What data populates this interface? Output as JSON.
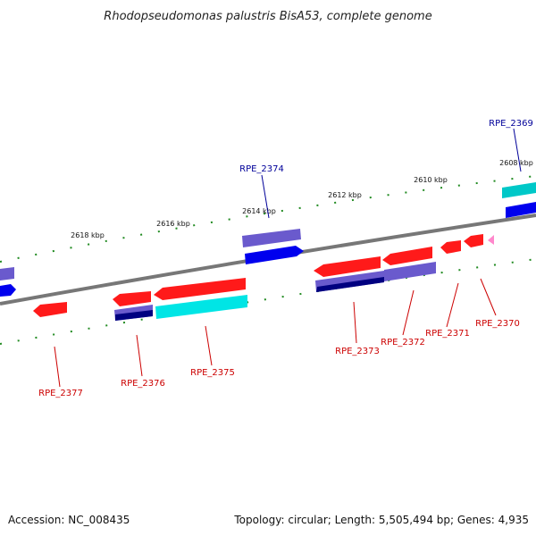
{
  "title": "Rhodopseudomonas palustris BisA53, complete genome",
  "footer": {
    "accession": "Accession: NC_008435",
    "topology": "Topology: circular; Length: 5,505,494 bp; Genes: 4,935"
  },
  "ticks": [
    "2608 kbp",
    "2610 kbp",
    "2612 kbp",
    "2614 kbp",
    "2616 kbp",
    "2618 kbp"
  ],
  "gene_labels": [
    "RPE_2369",
    "RPE_2370",
    "RPE_2371",
    "RPE_2372",
    "RPE_2373",
    "RPE_2374",
    "RPE_2375",
    "RPE_2376",
    "RPE_2377"
  ],
  "colors": {
    "red": "#ff1a1a",
    "blue": "#0000ee",
    "purple": "#6a5acd",
    "navy": "#000080",
    "cyan": "#00e5e5",
    "pink": "#ff88cc",
    "backbone": "#777777",
    "grid": "#228b22",
    "label_forward": "#000099",
    "label_reverse": "#cc0000"
  }
}
